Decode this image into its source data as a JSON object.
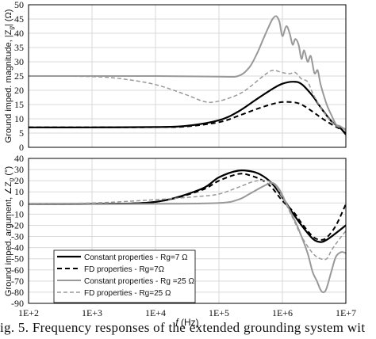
{
  "caption": "ig. 5.  Frequency  responses  of  the  extended  grounding  system  wit",
  "chart_data": [
    {
      "type": "line",
      "xscale": "log",
      "xlim": [
        100,
        10000000
      ],
      "ylim": [
        0,
        50
      ],
      "yticks": [
        0,
        5,
        10,
        15,
        20,
        25,
        30,
        35,
        40,
        45,
        50
      ],
      "ylabel_parts": [
        "Ground imped. magnitude, |Z",
        "g",
        "| (Ω)"
      ],
      "grid": true,
      "series": [
        {
          "name": "Constant properties - Rg=7 Ω",
          "color": "#000000",
          "dash": "solid",
          "width": 2.2,
          "x": [
            100,
            1000,
            10000,
            30000,
            100000,
            200000,
            400000,
            700000,
            1000000,
            1500000,
            2000000,
            3000000,
            4000000,
            6000000,
            8000000,
            10000000
          ],
          "y": [
            7,
            7,
            7.1,
            7.5,
            9.5,
            12.5,
            17,
            20.5,
            22.3,
            23,
            22.2,
            18,
            14,
            9,
            7,
            4.5
          ]
        },
        {
          "name": "FD properties - Rg=7Ω",
          "color": "#000000",
          "dash": "6,4",
          "width": 2,
          "x": [
            100,
            1000,
            10000,
            30000,
            100000,
            200000,
            400000,
            700000,
            1000000,
            1500000,
            2000000,
            3000000,
            4000000,
            6000000,
            8000000,
            10000000
          ],
          "y": [
            7,
            7,
            7.05,
            7.3,
            8.8,
            11,
            13.5,
            15.2,
            15.9,
            15.8,
            15,
            12.5,
            10.5,
            8,
            6.5,
            5
          ]
        },
        {
          "name": "Constant properties - Rg =25 Ω",
          "color": "#999999",
          "dash": "solid",
          "width": 2,
          "x": [
            100,
            1000,
            10000,
            100000,
            200000,
            300000,
            400000,
            500000,
            600000,
            700000,
            800000,
            900000,
            1000000,
            1150000,
            1300000,
            1450000,
            1600000,
            1800000,
            2000000,
            2200000,
            2500000,
            2800000,
            3200000,
            3600000,
            4000000,
            5000000,
            6000000,
            7000000,
            8000000,
            10000000
          ],
          "y": [
            25,
            25,
            25,
            24.8,
            25,
            28,
            33,
            38,
            42,
            45,
            46,
            44,
            39,
            42.5,
            40,
            36,
            38,
            36,
            31,
            34,
            30,
            32,
            26,
            27,
            22,
            15,
            11,
            8,
            7.5,
            6
          ]
        },
        {
          "name": "FD properties - Rg=25 Ω",
          "color": "#999999",
          "dash": "5,3",
          "width": 1.5,
          "x": [
            100,
            1000,
            3000,
            10000,
            30000,
            60000,
            100000,
            200000,
            300000,
            500000,
            700000,
            1000000,
            1300000,
            1600000,
            2000000,
            2500000,
            3000000,
            4000000,
            5000000,
            6000000,
            7000000,
            8000000,
            10000000
          ],
          "y": [
            25,
            24.8,
            24,
            22,
            18.5,
            16,
            16.2,
            18.5,
            21,
            25,
            27,
            26.2,
            25.8,
            26.2,
            24,
            23,
            19,
            14,
            11,
            9,
            7.5,
            7,
            6.5
          ]
        }
      ]
    },
    {
      "type": "line",
      "xscale": "log",
      "xlim": [
        100,
        10000000
      ],
      "ylim": [
        -90,
        40
      ],
      "yticks": [
        -90,
        -80,
        -70,
        -60,
        -50,
        -40,
        -30,
        -20,
        -10,
        0,
        10,
        20,
        30,
        40
      ],
      "ylabel_parts": [
        "Ground imped. argument, ∠Z",
        "g",
        " (°)"
      ],
      "xlabel_parts": [
        "f",
        " (Hz)"
      ],
      "xtick_labels": [
        "1E+2",
        "1E+3",
        "1E+4",
        "1E+5",
        "1E+6",
        "1E+7"
      ],
      "grid": true,
      "legend": "bottom-left",
      "series": [
        {
          "name": "Constant properties - Rg=7 Ω",
          "color": "#000000",
          "dash": "solid",
          "width": 2.2,
          "x": [
            100,
            1000,
            10000,
            50000,
            100000,
            200000,
            350000,
            500000,
            700000,
            1000000,
            1500000,
            2000000,
            3000000,
            4000000,
            5000000,
            7000000,
            10000000
          ],
          "y": [
            -1,
            -0.8,
            1,
            12,
            23,
            29,
            28,
            24,
            17,
            5,
            -10,
            -20,
            -32,
            -35,
            -33,
            -27,
            -20
          ]
        },
        {
          "name": "FD properties - Rg=7Ω",
          "color": "#000000",
          "dash": "6,4",
          "width": 2,
          "x": [
            100,
            1000,
            10000,
            50000,
            100000,
            200000,
            300000,
            500000,
            700000,
            1000000,
            1500000,
            2000000,
            3000000,
            4000000,
            5000000,
            7000000,
            10000000
          ],
          "y": [
            -1,
            -0.8,
            1,
            11,
            20,
            26,
            25,
            20,
            13,
            2,
            -8,
            -18,
            -30,
            -33,
            -31,
            -20,
            -1
          ]
        },
        {
          "name": "Constant properties - Rg =25 Ω",
          "color": "#999999",
          "dash": "solid",
          "width": 2,
          "x": [
            100,
            1000,
            10000,
            100000,
            200000,
            300000,
            500000,
            700000,
            900000,
            1100000,
            1400000,
            1700000,
            2000000,
            2500000,
            3000000,
            3500000,
            4000000,
            4500000,
            5000000,
            6000000,
            7000000,
            8500000,
            10000000
          ],
          "y": [
            -1,
            -1,
            -0.8,
            0,
            3,
            8,
            15,
            18,
            12,
            2,
            -10,
            -20,
            -30,
            -45,
            -62,
            -70,
            -78,
            -80,
            -76,
            -60,
            -48,
            -44,
            -45
          ]
        },
        {
          "name": "FD properties - Rg=25 Ω",
          "color": "#999999",
          "dash": "5,3",
          "width": 1.5,
          "x": [
            100,
            1000,
            10000,
            50000,
            100000,
            200000,
            400000,
            700000,
            1000000,
            1500000,
            2000000,
            3000000,
            4000000,
            5000000,
            6000000,
            8000000,
            10000000
          ],
          "y": [
            -0.5,
            0,
            3,
            6,
            8,
            14,
            20,
            18,
            5,
            -15,
            -30,
            -45,
            -50,
            -50,
            -42,
            -32,
            -25
          ]
        }
      ]
    }
  ]
}
